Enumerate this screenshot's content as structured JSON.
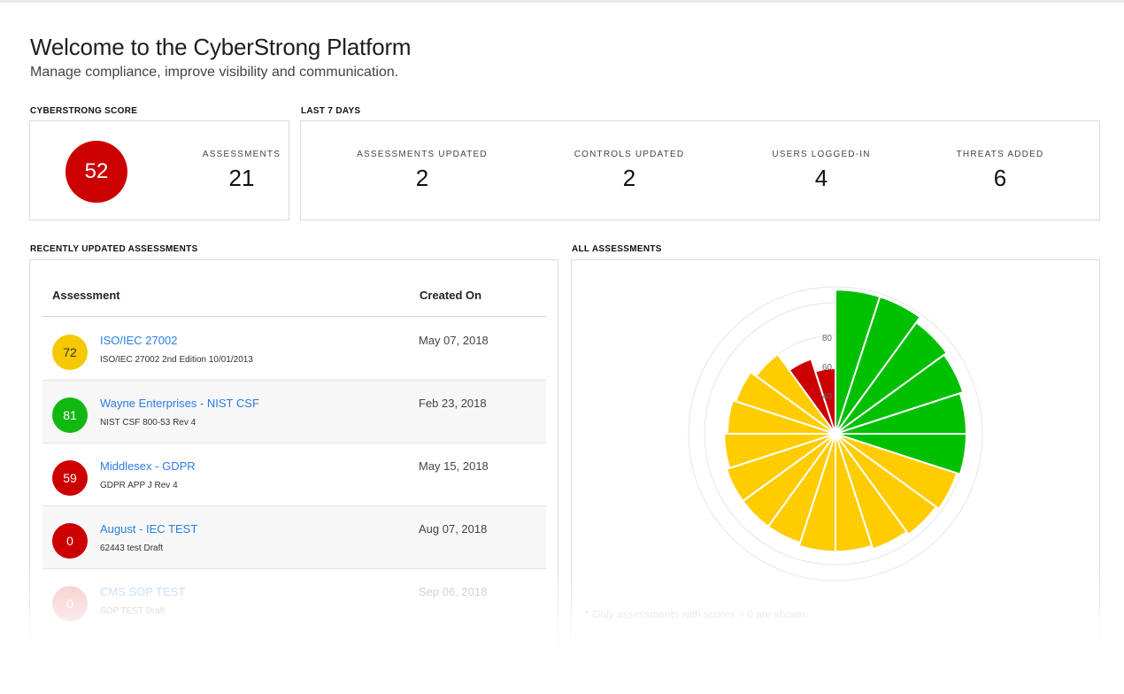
{
  "header": {
    "title": "Welcome to the CyberStrong Platform",
    "subtitle": "Manage compliance, improve visibility and communication."
  },
  "score_card": {
    "section_label": "CYBERSTRONG SCORE",
    "score": "52",
    "score_color": "#cc0000",
    "assessments_label": "ASSESSMENTS",
    "assessments_value": "21"
  },
  "last7": {
    "section_label": "LAST 7 DAYS",
    "stats": [
      {
        "label": "ASSESSMENTS UPDATED",
        "value": "2"
      },
      {
        "label": "CONTROLS UPDATED",
        "value": "2"
      },
      {
        "label": "USERS LOGGED-IN",
        "value": "4"
      },
      {
        "label": "THREATS ADDED",
        "value": "6"
      }
    ]
  },
  "recent": {
    "section_label": "RECENTLY UPDATED ASSESSMENTS",
    "columns": [
      "Assessment",
      "Created On"
    ],
    "rows": [
      {
        "score": "72",
        "color": "#f5c800",
        "name": "ISO/IEC 27002",
        "sub": "ISO/IEC 27002 2nd Edition 10/01/2013",
        "date": "May 07, 2018"
      },
      {
        "score": "81",
        "color": "#11b811",
        "name": "Wayne Enterprises - NIST CSF",
        "sub": "NIST CSF 800-53 Rev 4",
        "date": "Feb 23, 2018"
      },
      {
        "score": "59",
        "color": "#cc0000",
        "name": "Middlesex - GDPR",
        "sub": "GDPR APP J Rev 4",
        "date": "May 15, 2018"
      },
      {
        "score": "0",
        "color": "#cc0000",
        "name": "August - IEC TEST",
        "sub": "62443 test Draft",
        "date": "Aug 07, 2018"
      },
      {
        "score": "0",
        "color": "#e85a5a",
        "name": "CMS SOP TEST",
        "sub": "SOP TEST Draft",
        "date": "Sep 06, 2018"
      }
    ]
  },
  "all_assessments": {
    "section_label": "ALL ASSESSMENTS",
    "footnote": "* Only assessments with scores > 0 are shown."
  },
  "colors": {
    "green": "#00c000",
    "yellow": "#ffcc00",
    "red": "#cc0000"
  },
  "chart_data": {
    "type": "polar-area",
    "radial_ticks": [
      "40",
      "60",
      "80"
    ],
    "rmax": 100,
    "values": [
      88,
      88,
      84,
      82,
      80,
      80,
      78,
      76,
      74,
      72,
      72,
      70,
      70,
      70,
      68,
      66,
      64,
      60,
      48,
      40
    ],
    "categories": [
      "green",
      "green",
      "green",
      "green",
      "green",
      "green",
      "yellow",
      "yellow",
      "yellow",
      "yellow",
      "yellow",
      "yellow",
      "yellow",
      "yellow",
      "yellow",
      "yellow",
      "yellow",
      "yellow",
      "red",
      "red"
    ]
  }
}
